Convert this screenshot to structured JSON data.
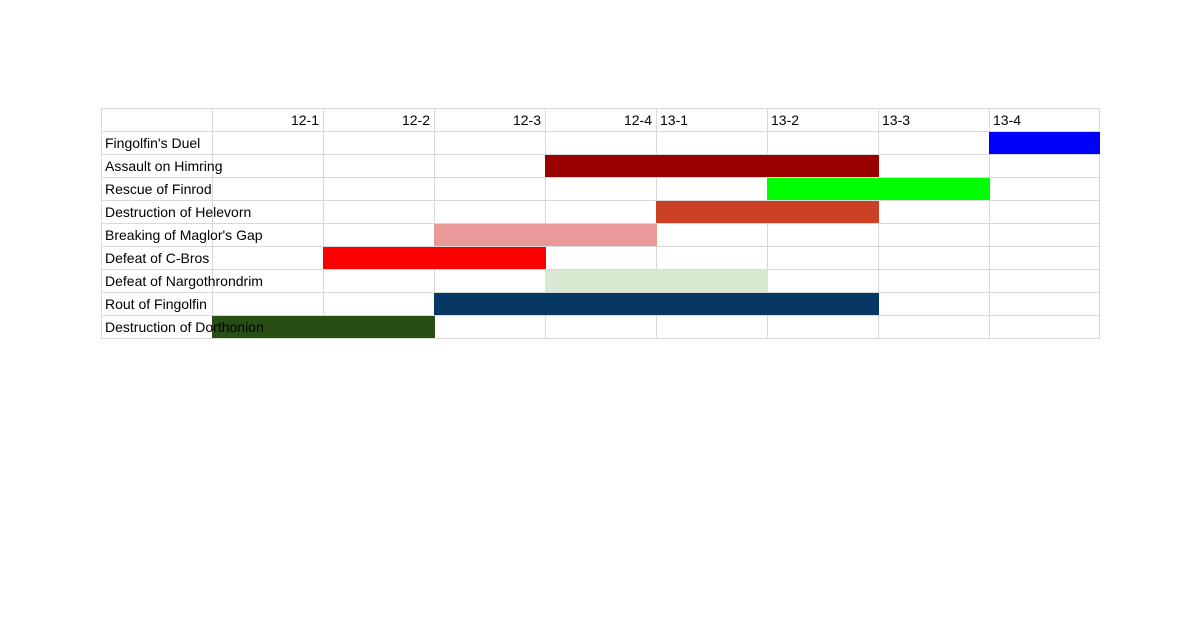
{
  "header": {
    "columns": [
      {
        "label": "",
        "align": "left"
      },
      {
        "label": "12-1",
        "align": "right"
      },
      {
        "label": "12-2",
        "align": "right"
      },
      {
        "label": "12-3",
        "align": "right"
      },
      {
        "label": "12-4",
        "align": "right"
      },
      {
        "label": "13-1",
        "align": "left"
      },
      {
        "label": "13-2",
        "align": "left"
      },
      {
        "label": "13-3",
        "align": "left"
      },
      {
        "label": "13-4",
        "align": "left"
      }
    ]
  },
  "rows": [
    {
      "label": "Fingolfin's Duel",
      "bar": {
        "start_col": 8,
        "end_col": 9,
        "color": "#0000ff"
      }
    },
    {
      "label": "Assault on Himring",
      "bar": {
        "start_col": 4,
        "end_col": 7,
        "color": "#990000"
      }
    },
    {
      "label": "Rescue of Finrod",
      "bar": {
        "start_col": 6,
        "end_col": 8,
        "color": "#00ff00"
      }
    },
    {
      "label": "Destruction of Helevorn",
      "bar": {
        "start_col": 5,
        "end_col": 7,
        "color": "#cc4125"
      }
    },
    {
      "label": "Breaking of Maglor's Gap",
      "bar": {
        "start_col": 3,
        "end_col": 5,
        "color": "#ea9999"
      }
    },
    {
      "label": "Defeat of C-Bros",
      "bar": {
        "start_col": 2,
        "end_col": 4,
        "color": "#ff0000"
      }
    },
    {
      "label": "Defeat of Nargothrondrim",
      "bar": {
        "start_col": 4,
        "end_col": 6,
        "color": "#d9ead3"
      }
    },
    {
      "label": "Rout of Fingolfin",
      "bar": {
        "start_col": 3,
        "end_col": 7,
        "color": "#073763"
      }
    },
    {
      "label": "Destruction of Dorthonion",
      "bar": {
        "start_col": 1,
        "end_col": 3,
        "color": "#274e13"
      }
    }
  ]
}
